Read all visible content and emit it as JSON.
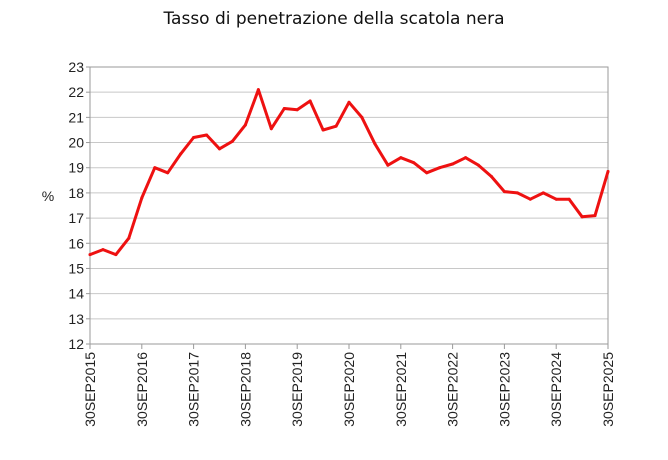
{
  "chart_data": {
    "type": "line",
    "title": "Tasso di penetrazione della scatola nera",
    "xlabel": "",
    "ylabel": "%",
    "ylim": [
      12,
      23
    ],
    "yticks": [
      12,
      13,
      14,
      15,
      16,
      17,
      18,
      19,
      20,
      21,
      22,
      23
    ],
    "grid": "horizontal",
    "xtick_labels": [
      "30SEP2015",
      "30SEP2016",
      "30SEP2017",
      "30SEP2018",
      "30SEP2019",
      "30SEP2020",
      "30SEP2021",
      "30SEP2022",
      "30SEP2023",
      "30SEP2024",
      "30SEP2025"
    ],
    "x": [
      "2015Q3",
      "2015Q4",
      "2016Q1",
      "2016Q2",
      "2016Q3",
      "2016Q4",
      "2017Q1",
      "2017Q2",
      "2017Q3",
      "2017Q4",
      "2018Q1",
      "2018Q2",
      "2018Q3",
      "2018Q4",
      "2019Q1",
      "2019Q2",
      "2019Q3",
      "2019Q4",
      "2020Q1",
      "2020Q2",
      "2020Q3",
      "2020Q4",
      "2021Q1",
      "2021Q2",
      "2021Q3",
      "2021Q4",
      "2022Q1",
      "2022Q2",
      "2022Q3",
      "2022Q4",
      "2023Q1",
      "2023Q2",
      "2023Q3",
      "2023Q4",
      "2024Q1",
      "2024Q2",
      "2024Q3",
      "2024Q4",
      "2025Q1",
      "2025Q2",
      "2025Q3"
    ],
    "series": [
      {
        "color": "#ee1111",
        "values": [
          15.55,
          15.75,
          15.55,
          16.2,
          17.8,
          19.0,
          18.8,
          19.55,
          20.2,
          20.3,
          19.75,
          20.05,
          20.7,
          22.1,
          20.55,
          21.35,
          21.3,
          21.65,
          20.5,
          20.65,
          21.6,
          21.0,
          19.95,
          19.1,
          19.4,
          19.2,
          18.8,
          19.0,
          19.15,
          19.4,
          19.1,
          18.65,
          18.05,
          18.0,
          17.75,
          18.0,
          17.75,
          17.75,
          17.05,
          17.1,
          18.85
        ]
      }
    ]
  }
}
